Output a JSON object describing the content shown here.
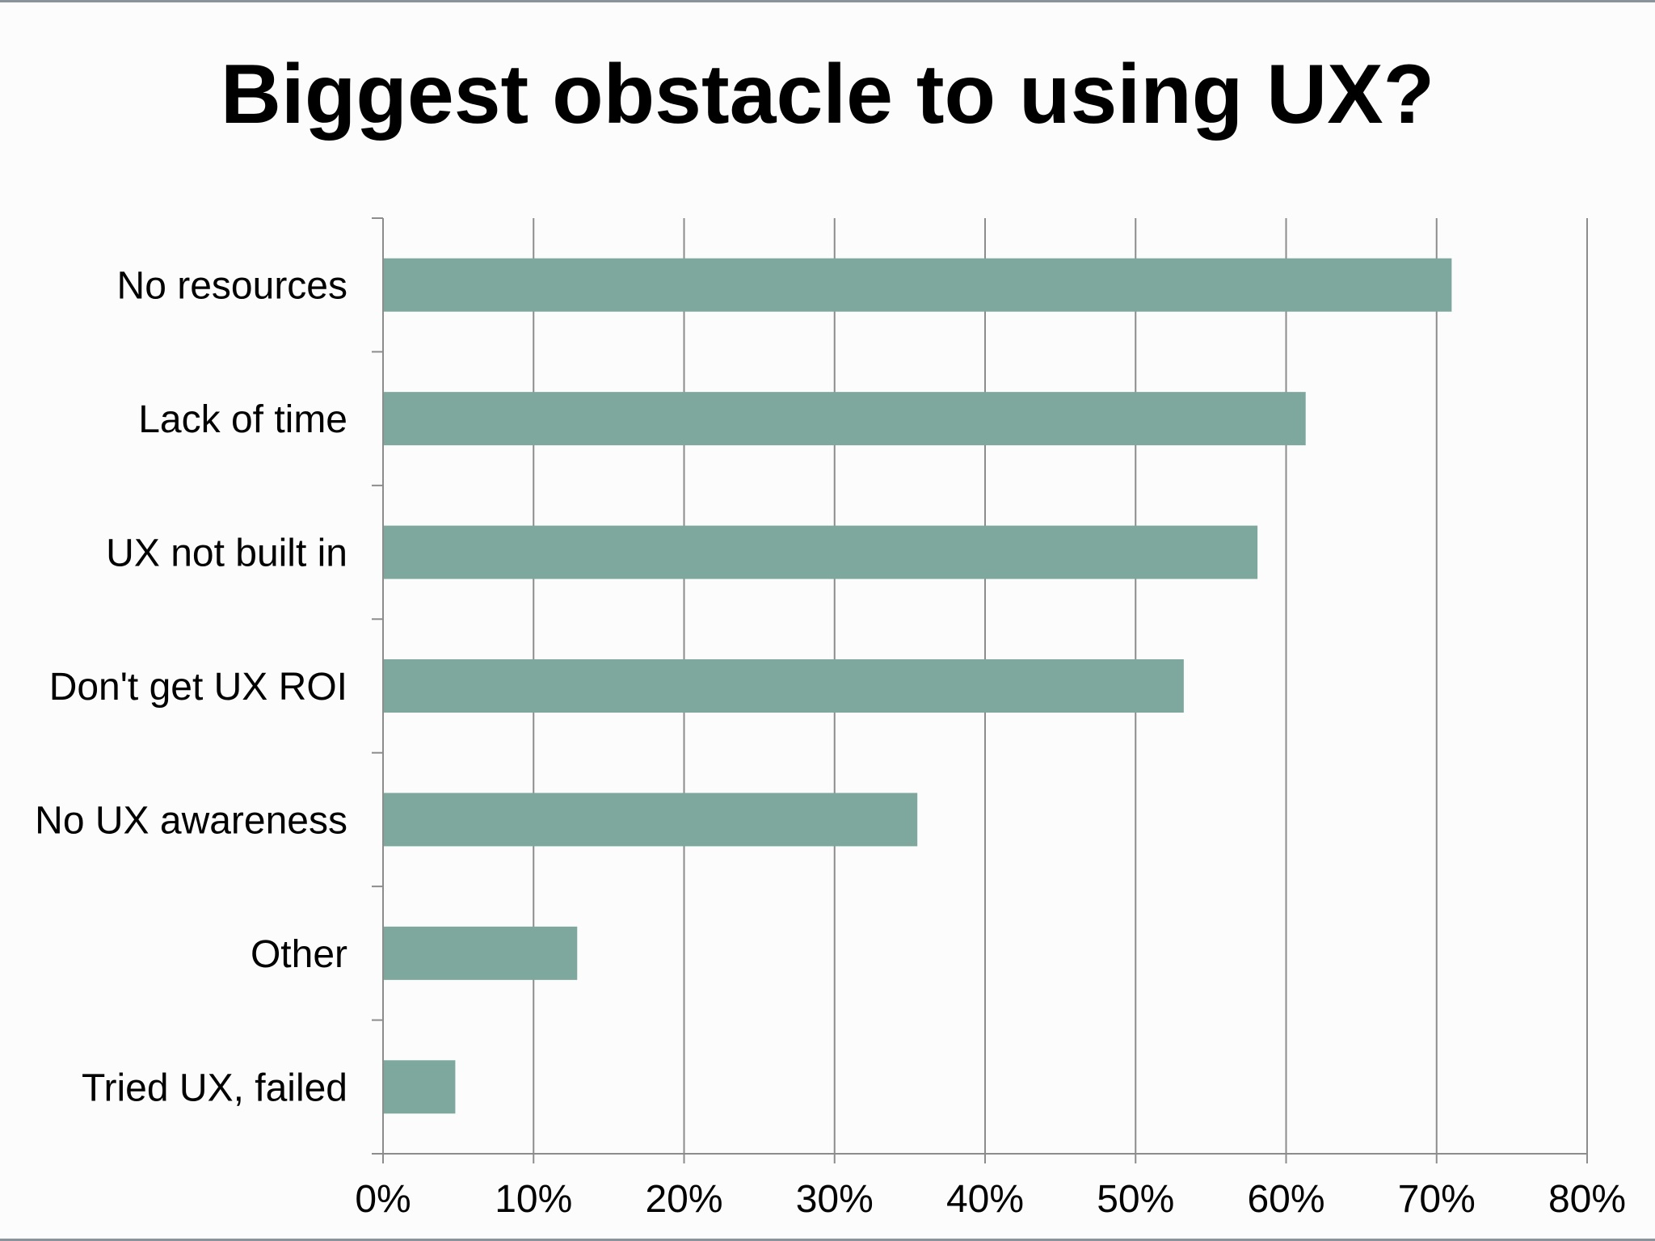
{
  "chart_data": {
    "type": "bar",
    "orientation": "horizontal",
    "title": "Biggest obstacle to using UX?",
    "categories": [
      "No resources",
      "Lack of time",
      "UX not built in",
      "Don't get UX ROI",
      "No UX awareness",
      "Other",
      "Tried UX, failed"
    ],
    "values": [
      71,
      61.3,
      58.1,
      53.2,
      35.5,
      12.9,
      4.8
    ],
    "xlim": [
      0,
      80
    ],
    "x_ticks": [
      "0%",
      "10%",
      "20%",
      "30%",
      "40%",
      "50%",
      "60%",
      "70%",
      "80%"
    ],
    "grid": true,
    "legend": "none",
    "bar_color": "#7ea79d"
  }
}
